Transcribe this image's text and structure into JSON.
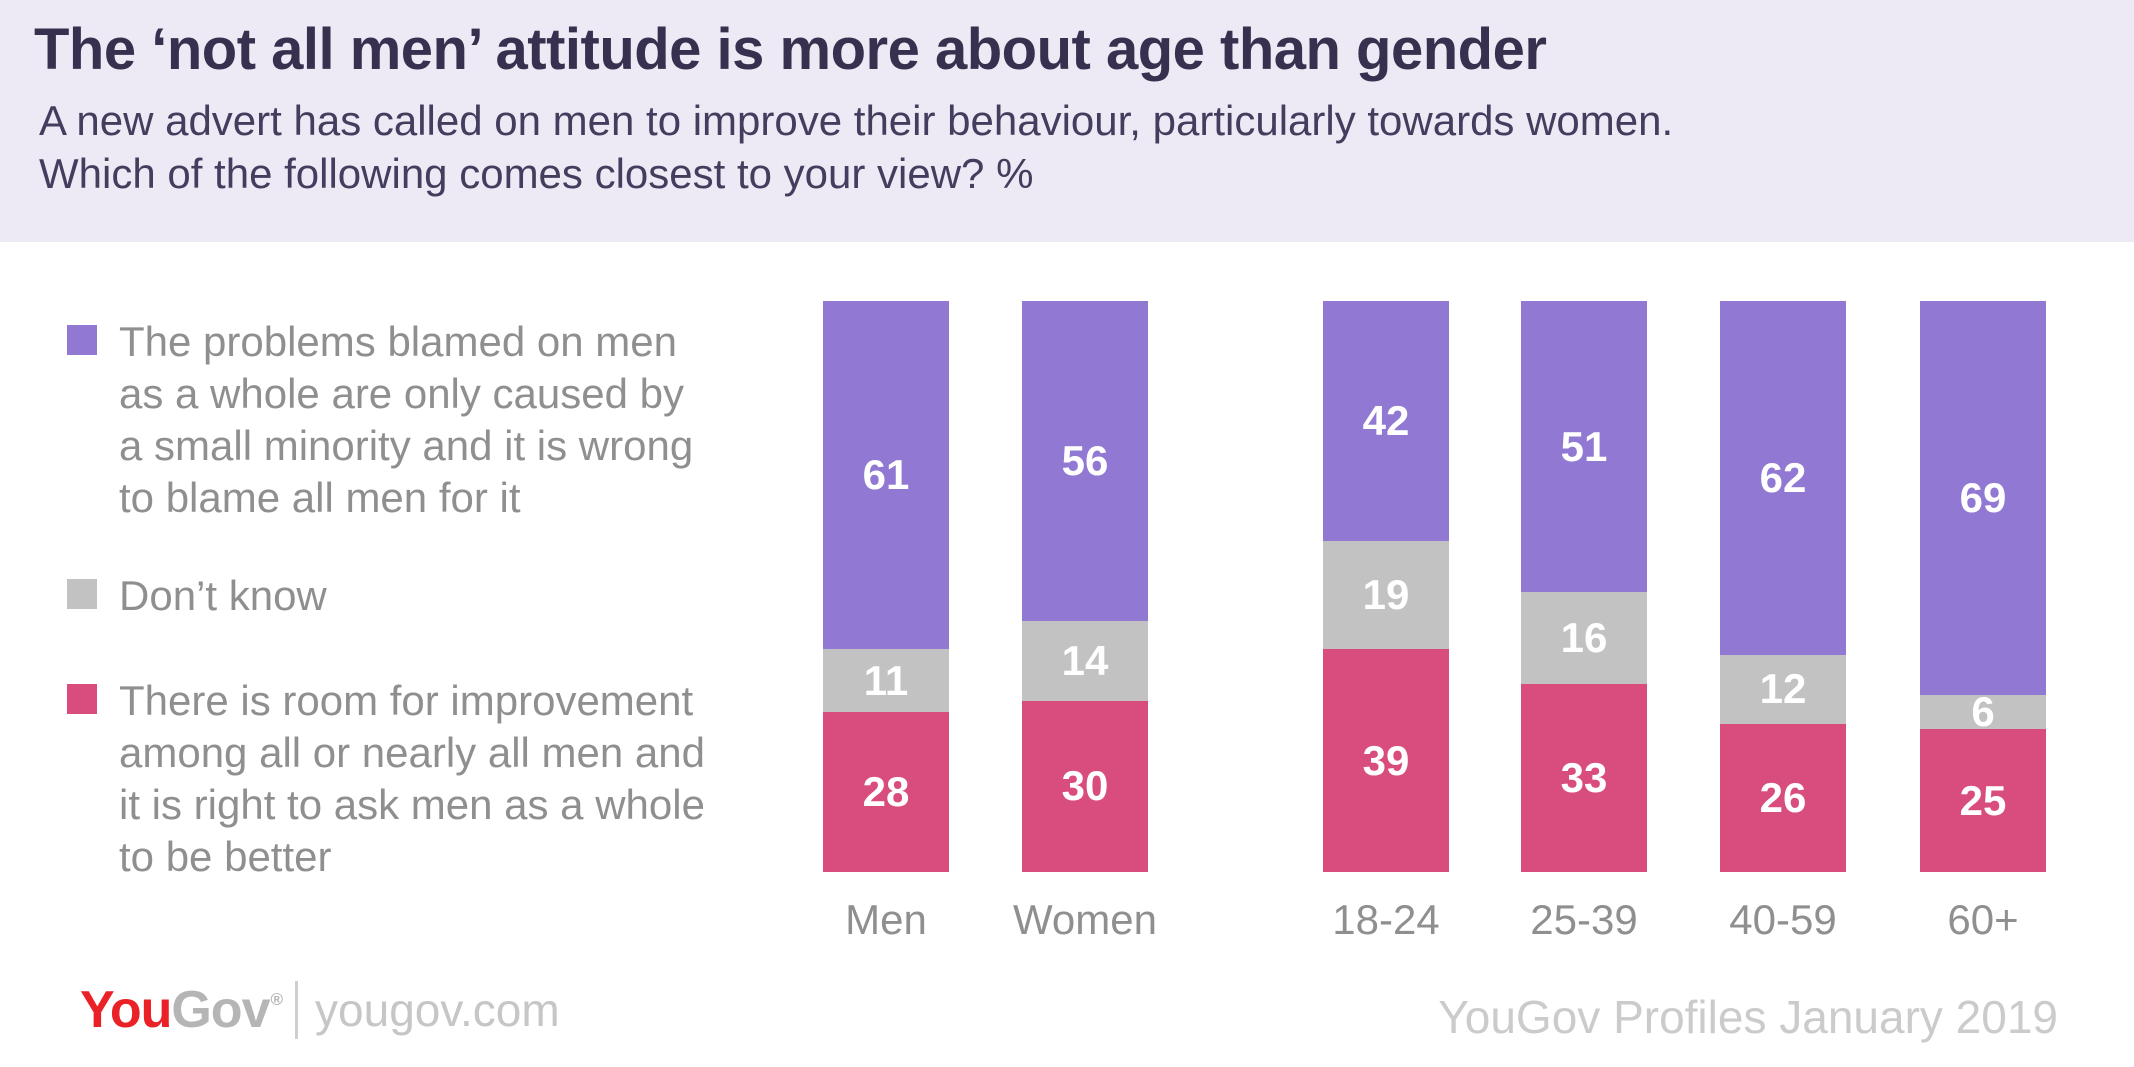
{
  "header": {
    "title": "The ‘not all men’ attitude is more about age than gender",
    "subtitle_line1": "A new advert has called on men to improve their behaviour, particularly towards women.",
    "subtitle_line2": "Which of the following comes closest to your view? %"
  },
  "colors": {
    "header_background": "#EDEAF5",
    "title_text": "#38304F",
    "purple_segment": "#9179D3",
    "gray_segment": "#C2C2C2",
    "pink_segment": "#D94D7E",
    "muted_text": "#8F8F8F",
    "footer_text": "#CBCBCB",
    "logo_red": "#EA2127"
  },
  "legend": {
    "items": [
      {
        "color": "#9179D3",
        "lines": [
          "The problems blamed on men",
          "as a whole are only caused by",
          "a small minority and it is wrong",
          "to blame all men for it"
        ]
      },
      {
        "color": "#C2C2C2",
        "lines": [
          "Don’t know"
        ]
      },
      {
        "color": "#D94D7E",
        "lines": [
          "There is room for improvement",
          "among all or nearly all men and",
          "it is right to ask men as a whole",
          "to be better"
        ]
      }
    ]
  },
  "chart_data": {
    "type": "bar",
    "stacked": true,
    "unit": "%",
    "title": "The ‘not all men’ attitude is more about age than gender",
    "categories": [
      "Men",
      "Women",
      "18-24",
      "25-39",
      "40-59",
      "60+"
    ],
    "series": [
      {
        "name": "The problems blamed on men as a whole are only caused by a small minority and it is wrong to blame all men for it",
        "color": "#9179D3",
        "values": [
          61,
          56,
          42,
          51,
          62,
          69
        ]
      },
      {
        "name": "Don’t know",
        "color": "#C2C2C2",
        "values": [
          11,
          14,
          19,
          16,
          12,
          6
        ]
      },
      {
        "name": "There is room for improvement among all or nearly all men and it is right to ask men as a whole to be better",
        "color": "#D94D7E",
        "values": [
          28,
          30,
          39,
          33,
          26,
          25
        ]
      }
    ],
    "ylim": [
      0,
      100
    ],
    "value_labels": "white, centered inside each segment",
    "legend_position": "left",
    "grid": false
  },
  "footer": {
    "logo_you": "You",
    "logo_gov": "Gov",
    "logo_reg": "®",
    "site": "yougov.com",
    "source": "YouGov Profiles January 2019"
  }
}
